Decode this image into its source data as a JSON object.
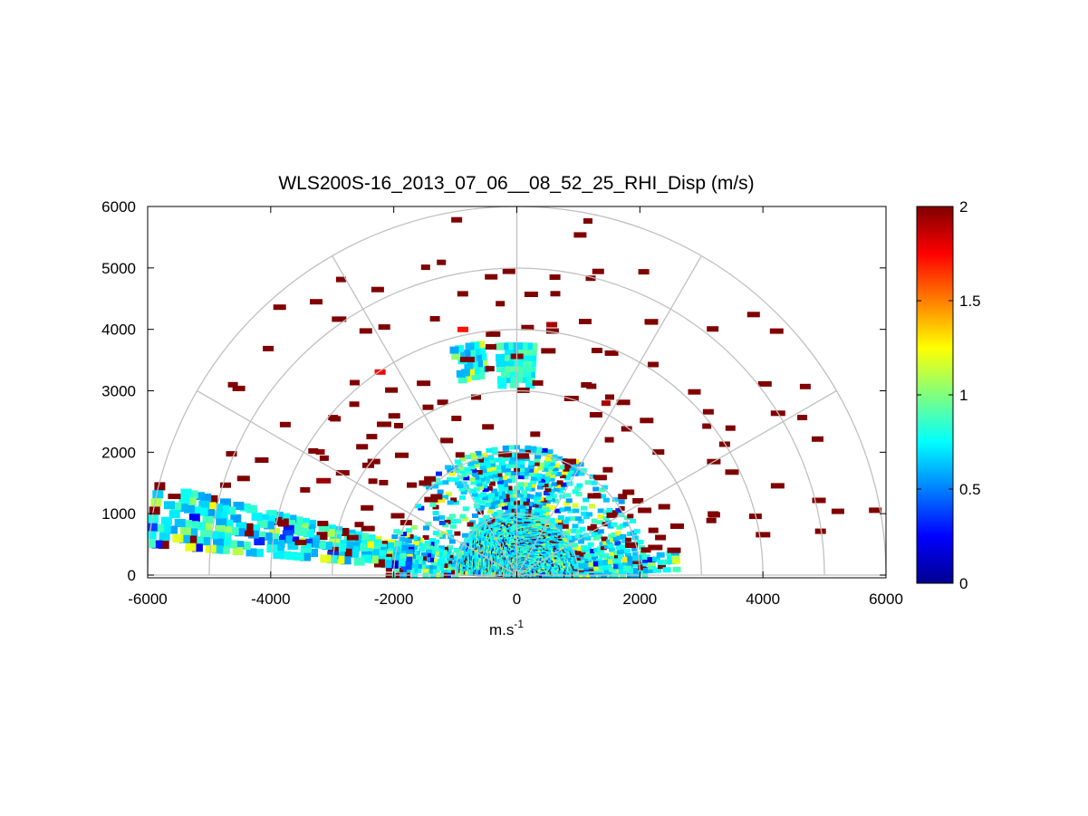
{
  "chart_data": {
    "type": "heatmap",
    "subtype": "polar-rhi-scan",
    "title": "WLS200S-16_2013_07_06__08_52_25_RHI_Disp (m/s)",
    "xlabel": "m.s",
    "xlabel_superscript": "-1",
    "ylabel": "",
    "xlim": [
      -6000,
      6000
    ],
    "ylim": [
      0,
      6000
    ],
    "x_ticks": [
      "-6000",
      "-4000",
      "-2000",
      "0",
      "2000",
      "4000",
      "6000"
    ],
    "y_ticks": [
      "0",
      "1000",
      "2000",
      "3000",
      "4000",
      "5000",
      "6000"
    ],
    "grid": true,
    "polar_grid": {
      "range_rings": [
        1000,
        2000,
        3000,
        4000,
        5000,
        6000
      ],
      "spokes_deg": [
        0,
        30,
        60,
        90,
        120,
        150,
        180
      ]
    },
    "colorbar": {
      "colormap": "jet",
      "clim": [
        0,
        2
      ],
      "ticks": [
        "0",
        "0.5",
        "1",
        "1.5",
        "2"
      ],
      "placement": "right"
    },
    "colors": {
      "grid": "#c0c0c0",
      "saturated": "#800000",
      "axes": "#000000"
    },
    "description_of_values": "Doppler dispersion values in m/s; dense low-elevation returns (0.4-1.2 m/s) with scattered saturated (>=2 m/s) gates at long range",
    "data": [
      {
        "r_range": [
          0,
          1000
        ],
        "elev_range": [
          0,
          180
        ],
        "typical_value": 0.8
      },
      {
        "r_range": [
          1000,
          2000
        ],
        "elev_range": [
          0,
          20
        ],
        "typical_value": 0.7
      },
      {
        "r_range": [
          1000,
          2000
        ],
        "elev_range": [
          160,
          180
        ],
        "typical_value": 0.8
      },
      {
        "r_range": [
          2000,
          6000
        ],
        "elev_range": [
          168,
          175
        ],
        "typical_value": 1.0
      },
      {
        "r_range": [
          3200,
          3800
        ],
        "elev_range": [
          86,
          95
        ],
        "typical_value": 0.8
      },
      {
        "r_range": [
          1000,
          6000
        ],
        "elev_range": [
          10,
          170
        ],
        "typical_value": 2.0
      }
    ]
  }
}
